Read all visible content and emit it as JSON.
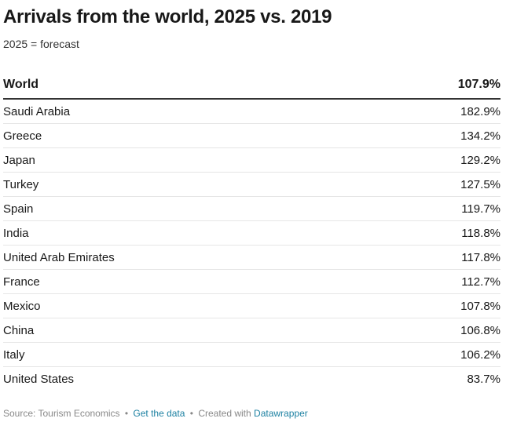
{
  "chart_data": {
    "type": "table",
    "title": "Arrivals from the world, 2025 vs. 2019",
    "subtitle": "2025 = forecast",
    "header": {
      "label": "World",
      "value": "107.9%"
    },
    "rows": [
      {
        "label": "Saudi Arabia",
        "value": "182.9%"
      },
      {
        "label": "Greece",
        "value": "134.2%"
      },
      {
        "label": "Japan",
        "value": "129.2%"
      },
      {
        "label": "Turkey",
        "value": "127.5%"
      },
      {
        "label": "Spain",
        "value": "119.7%"
      },
      {
        "label": "India",
        "value": "118.8%"
      },
      {
        "label": "United Arab Emirates",
        "value": "117.8%"
      },
      {
        "label": "France",
        "value": "112.7%"
      },
      {
        "label": "Mexico",
        "value": "107.8%"
      },
      {
        "label": "China",
        "value": "106.8%"
      },
      {
        "label": "Italy",
        "value": "106.2%"
      },
      {
        "label": "United States",
        "value": "83.7%"
      }
    ]
  },
  "footer": {
    "source": "Source: Tourism Economics",
    "separator": "•",
    "get_data": "Get the data",
    "created_with": "Created with",
    "tool": "Datawrapper"
  }
}
